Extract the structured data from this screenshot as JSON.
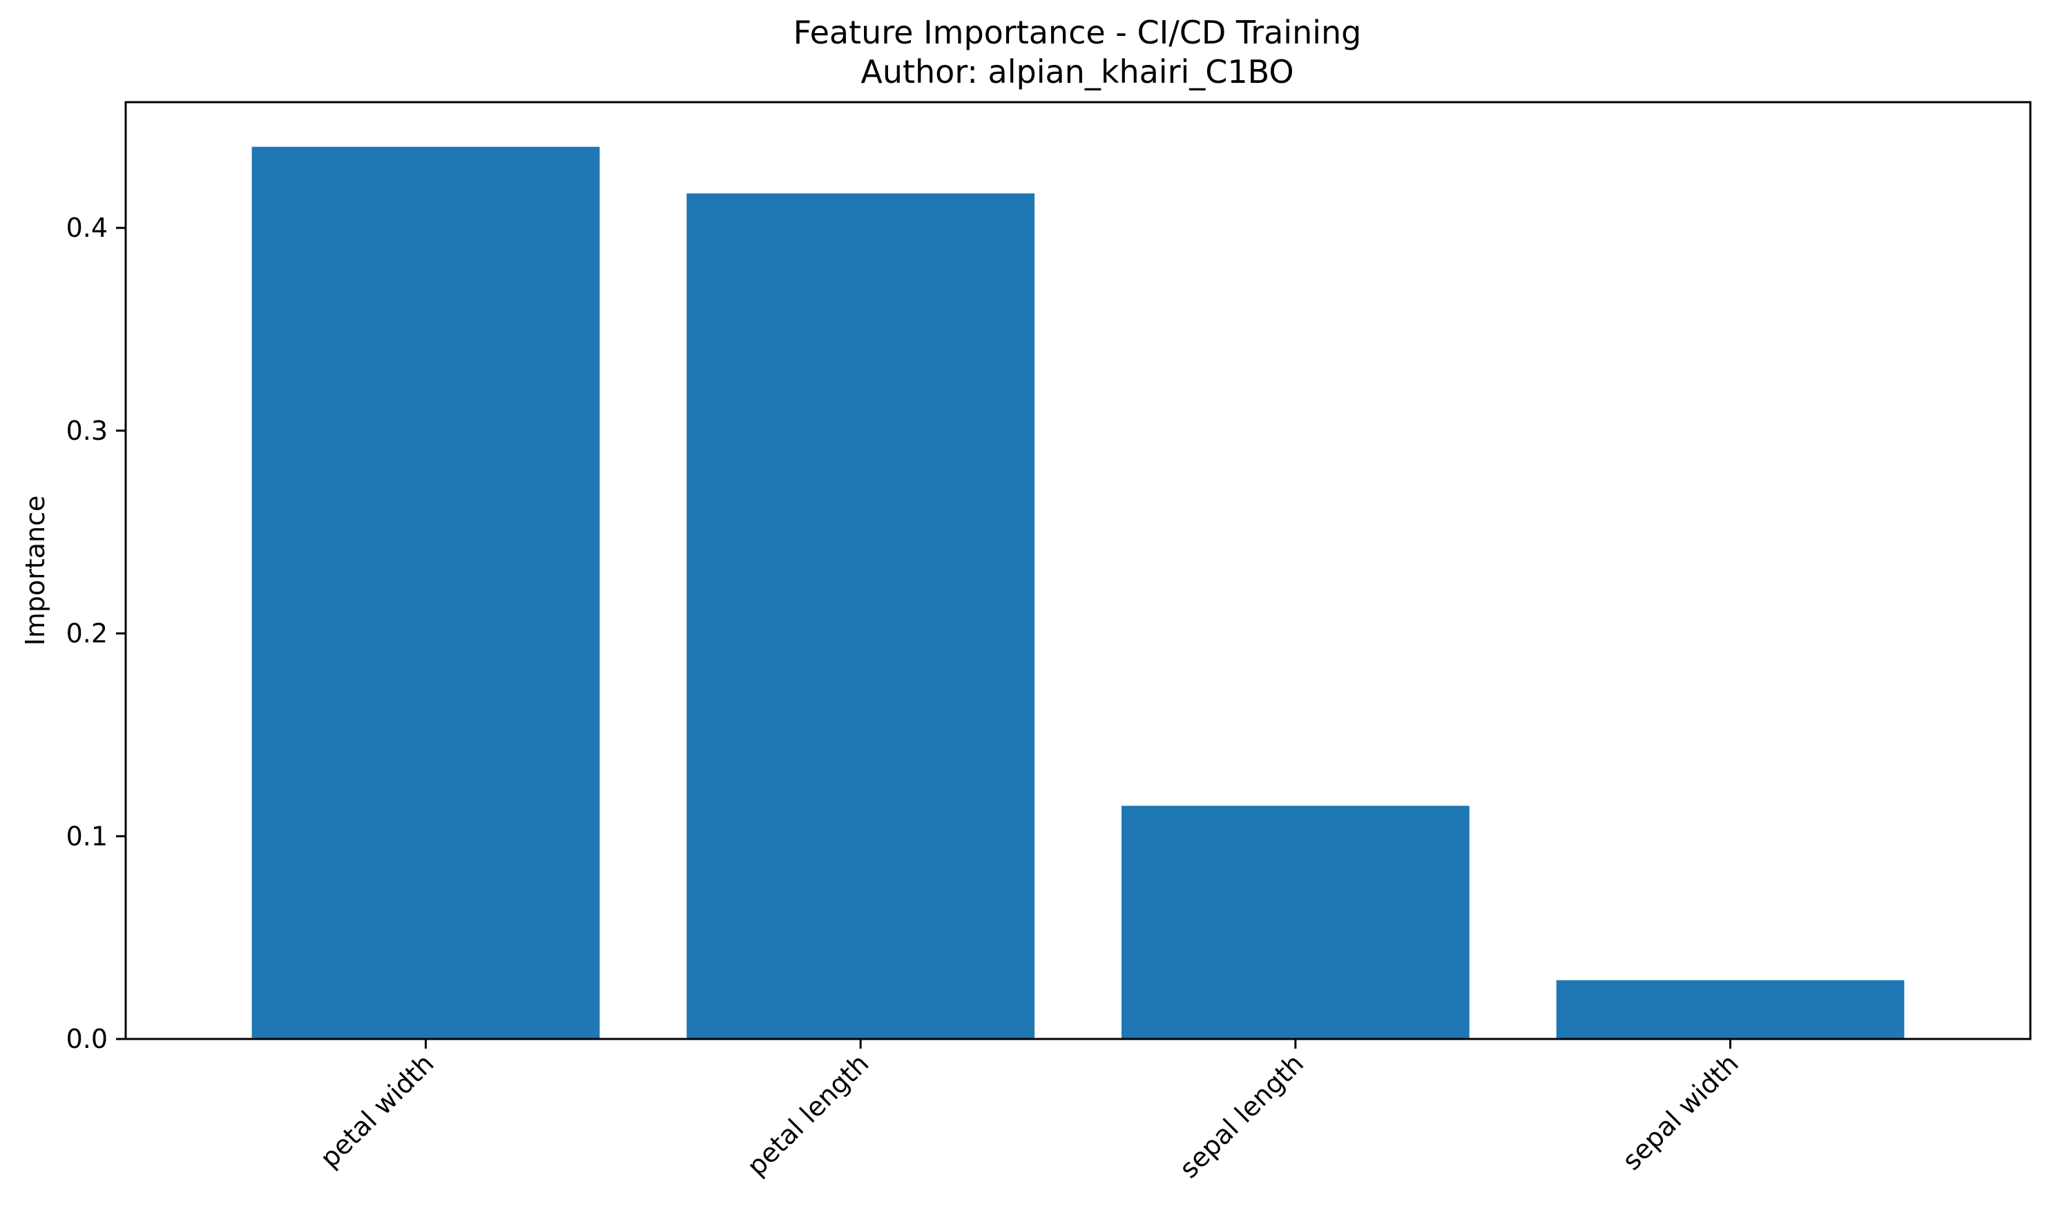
{
  "chart_data": {
    "type": "bar",
    "title": "Feature Importance - CI/CD Training",
    "subtitle": "Author: alpian_khairi_C1BO",
    "xlabel": "",
    "ylabel": "Importance",
    "categories": [
      "petal width",
      "petal length",
      "sepal length",
      "sepal width"
    ],
    "values": [
      0.44,
      0.417,
      0.115,
      0.029
    ],
    "ylim": [
      0,
      0.462
    ],
    "yticks": [
      0.0,
      0.1,
      0.2,
      0.3,
      0.4
    ],
    "ytick_labels": [
      "0.0",
      "0.1",
      "0.2",
      "0.3",
      "0.4"
    ],
    "grid": false,
    "legend": "none",
    "bar_color": "#1f77b4",
    "xtick_rotation_deg": 45
  }
}
